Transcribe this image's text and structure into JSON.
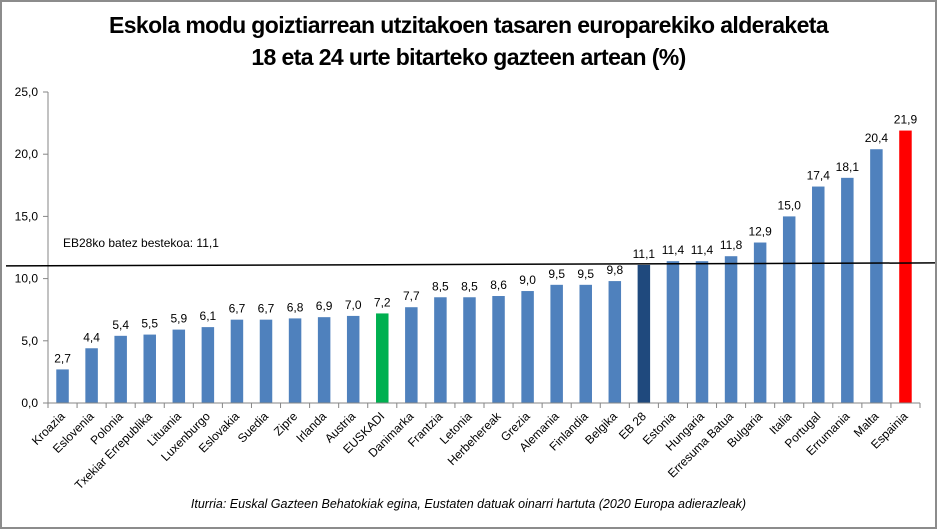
{
  "chart_data": {
    "type": "bar",
    "title": "Eskola modu goiztiarrean utzitakoen tasaren europarekiko alderaketa",
    "subtitle": "18 eta 24 urte bitarteko gazteen artean (%)",
    "xlabel": "",
    "ylabel": "",
    "ylim": [
      0,
      25
    ],
    "yticks": [
      "0,0",
      "5,0",
      "10,0",
      "15,0",
      "20,0",
      "25,0"
    ],
    "ytick_values": [
      0,
      5,
      10,
      15,
      20,
      25
    ],
    "grid": false,
    "legend": "none",
    "categories": [
      "Kroazia",
      "Eslovenia",
      "Polonia",
      "Txekiar Errepublika",
      "Lituania",
      "Luxenburgo",
      "Eslovakia",
      "Suedia",
      "Zipre",
      "Irlanda",
      "Austria",
      "EUSKADI",
      "Danimarka",
      "Frantzia",
      "Letonia",
      "Herbehereak",
      "Grezia",
      "Alemania",
      "Finlandia",
      "Belgika",
      "EB 28",
      "Estonia",
      "Hungaria",
      "Erresuma Batua",
      "Bulgaria",
      "Italia",
      "Portugal",
      "Errumania",
      "Malta",
      "Espainia"
    ],
    "values": [
      2.7,
      4.4,
      5.4,
      5.5,
      5.9,
      6.1,
      6.7,
      6.7,
      6.8,
      6.9,
      7.0,
      7.2,
      7.7,
      8.5,
      8.5,
      8.6,
      9.0,
      9.5,
      9.5,
      9.8,
      11.1,
      11.4,
      11.4,
      11.8,
      12.9,
      15.0,
      17.4,
      18.1,
      20.4,
      21.9
    ],
    "data_labels": [
      "2,7",
      "4,4",
      "5,4",
      "5,5",
      "5,9",
      "6,1",
      "6,7",
      "6,7",
      "6,8",
      "6,9",
      "7,0",
      "7,2",
      "7,7",
      "8,5",
      "8,5",
      "8,6",
      "9,0",
      "9,5",
      "9,5",
      "9,8",
      "11,1",
      "11,4",
      "11,4",
      "11,8",
      "12,9",
      "15,0",
      "17,4",
      "18,1",
      "20,4",
      "21,9"
    ],
    "bar_colors": {
      "default": "#4f81bd",
      "EUSKADI": "#00b050",
      "EB 28": "#1f497d",
      "Espainia": "#ff0000"
    },
    "reference_line": {
      "value": 11.1,
      "label": "EB28ko batez bestekoa: 11,1",
      "color": "#000000"
    },
    "source": "Iturria: Euskal Gazteen Behatokiak egina, Eustaten datuak oinarri hartuta (2020 Europa adierazleak)"
  }
}
